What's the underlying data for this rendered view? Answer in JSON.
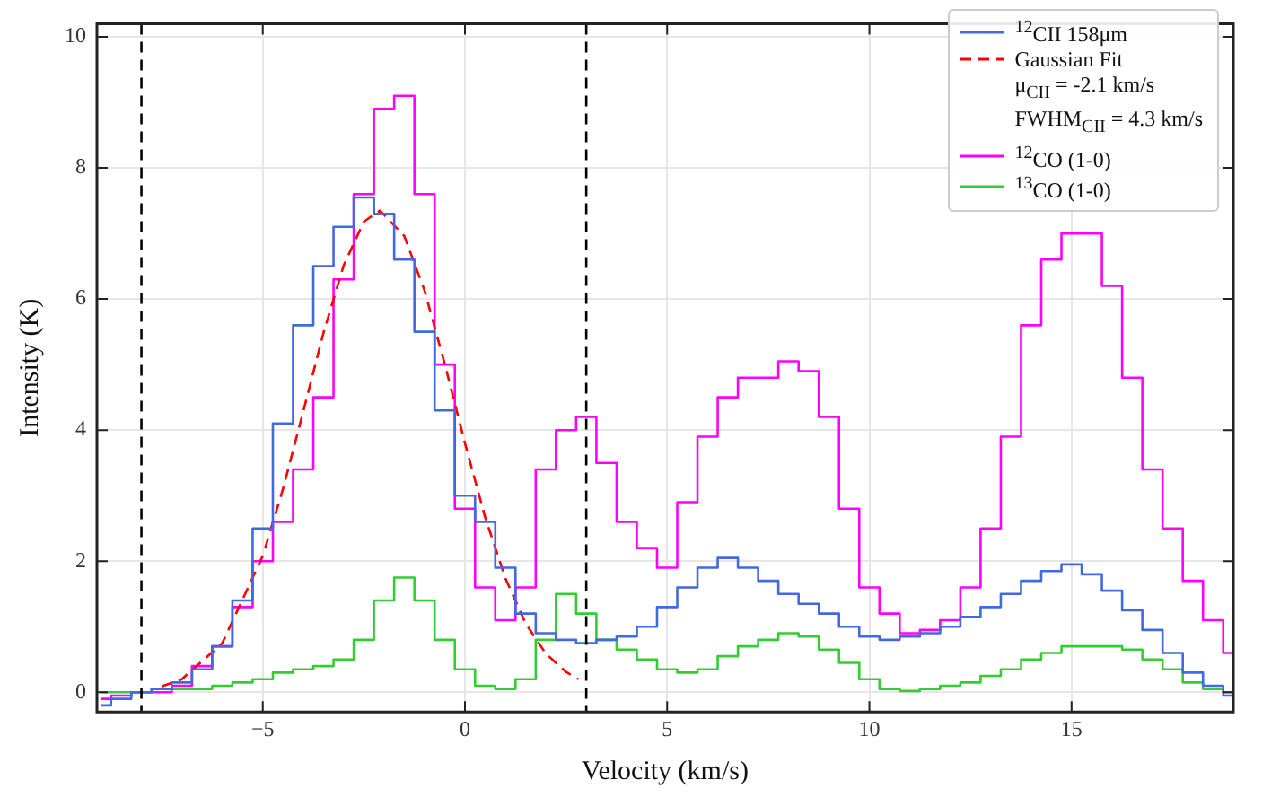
{
  "chart_data": {
    "type": "step",
    "xlabel": "Velocity (km/s)",
    "ylabel": "Intensity (K)",
    "x": [
      -9,
      -8.5,
      -8,
      -7.5,
      -7,
      -6.5,
      -6,
      -5.5,
      -5,
      -4.5,
      -4,
      -3.5,
      -3,
      -2.5,
      -2,
      -1.5,
      -1,
      -0.5,
      0,
      0.5,
      1,
      1.5,
      2,
      2.5,
      3,
      3.5,
      4,
      4.5,
      5,
      5.5,
      6,
      6.5,
      7,
      7.5,
      8,
      8.5,
      9,
      9.5,
      10,
      10.5,
      11,
      11.5,
      12,
      12.5,
      13,
      13.5,
      14,
      14.5,
      15,
      15.5,
      16,
      16.5,
      17,
      17.5,
      18,
      18.5,
      19
    ],
    "series": [
      {
        "name": "$^{12}$CII 158μm",
        "color": "#4169e1",
        "values": [
          -0.2,
          -0.1,
          0.0,
          0.05,
          0.15,
          0.35,
          0.7,
          1.4,
          2.5,
          4.1,
          5.6,
          6.5,
          7.1,
          7.55,
          7.3,
          6.6,
          5.5,
          4.3,
          3.0,
          2.6,
          1.9,
          1.2,
          0.9,
          0.8,
          0.75,
          0.8,
          0.85,
          1.0,
          1.3,
          1.6,
          1.9,
          2.05,
          1.9,
          1.7,
          1.5,
          1.35,
          1.2,
          1.0,
          0.85,
          0.8,
          0.85,
          0.9,
          1.0,
          1.15,
          1.3,
          1.5,
          1.7,
          1.85,
          1.95,
          1.8,
          1.55,
          1.25,
          0.95,
          0.6,
          0.3,
          0.1,
          -0.05
        ]
      },
      {
        "name": "Gaussian Fit",
        "type": "line",
        "color": "#ff0000",
        "line_style": "dashed",
        "x": [
          -7.5,
          -7,
          -6,
          -5,
          -4.5,
          -4,
          -3.5,
          -3,
          -2.5,
          -2.1,
          -1.5,
          -1,
          -0.5,
          0,
          0.5,
          1,
          1.5,
          2,
          2.5,
          2.8
        ],
        "values": [
          0.09,
          0.2,
          0.75,
          2.08,
          3.1,
          4.28,
          5.48,
          6.51,
          7.18,
          7.35,
          6.96,
          6.13,
          5.01,
          3.8,
          2.67,
          1.74,
          1.05,
          0.59,
          0.31,
          0.2
        ]
      },
      {
        "name": "$^{12}$CO (1-0)",
        "color": "#ff00ff",
        "values": [
          -0.1,
          -0.05,
          0.0,
          0.0,
          0.1,
          0.4,
          0.7,
          1.3,
          2.0,
          2.6,
          3.4,
          4.5,
          6.3,
          7.6,
          8.9,
          9.1,
          7.6,
          5.0,
          2.8,
          1.6,
          1.1,
          1.6,
          3.4,
          4.0,
          4.2,
          3.5,
          2.6,
          2.2,
          1.9,
          2.9,
          3.9,
          4.5,
          4.8,
          4.8,
          5.05,
          4.9,
          4.2,
          2.8,
          1.6,
          1.2,
          0.9,
          0.95,
          1.1,
          1.6,
          2.5,
          3.9,
          5.6,
          6.6,
          7.0,
          7.0,
          6.2,
          4.8,
          3.4,
          2.5,
          1.7,
          1.1,
          0.6
        ]
      },
      {
        "name": "$^{13}$CO (1-0)",
        "color": "#32cd32",
        "values": [
          0.0,
          0.0,
          0.0,
          0.05,
          0.05,
          0.05,
          0.1,
          0.15,
          0.2,
          0.3,
          0.35,
          0.4,
          0.5,
          0.8,
          1.4,
          1.75,
          1.4,
          0.8,
          0.35,
          0.1,
          0.05,
          0.2,
          0.8,
          1.5,
          1.2,
          0.8,
          0.65,
          0.5,
          0.35,
          0.3,
          0.35,
          0.55,
          0.7,
          0.8,
          0.9,
          0.85,
          0.65,
          0.45,
          0.2,
          0.05,
          0.02,
          0.05,
          0.1,
          0.15,
          0.25,
          0.35,
          0.5,
          0.6,
          0.7,
          0.7,
          0.7,
          0.65,
          0.5,
          0.35,
          0.15,
          0.05,
          0.0
        ]
      }
    ],
    "annotations": [
      "μ$_{CII}$ = -2.1 km/s",
      "FWHM$_{CII}$ = 4.3 km/s"
    ],
    "ref_lines": [
      {
        "axis": "x",
        "value": -8,
        "color": "#000000",
        "line_style": "dashed"
      },
      {
        "axis": "x",
        "value": 3,
        "color": "#000000",
        "line_style": "dashed"
      }
    ],
    "xlim": [
      -9.1,
      19.0
    ],
    "xticks": [
      {
        "value": -5,
        "label": "−5"
      },
      0,
      5,
      10,
      15
    ],
    "ylim": [
      -0.3,
      10.2
    ],
    "yticks": [
      0,
      2,
      4,
      6,
      8,
      10
    ],
    "grid": true,
    "legend": "top right"
  }
}
